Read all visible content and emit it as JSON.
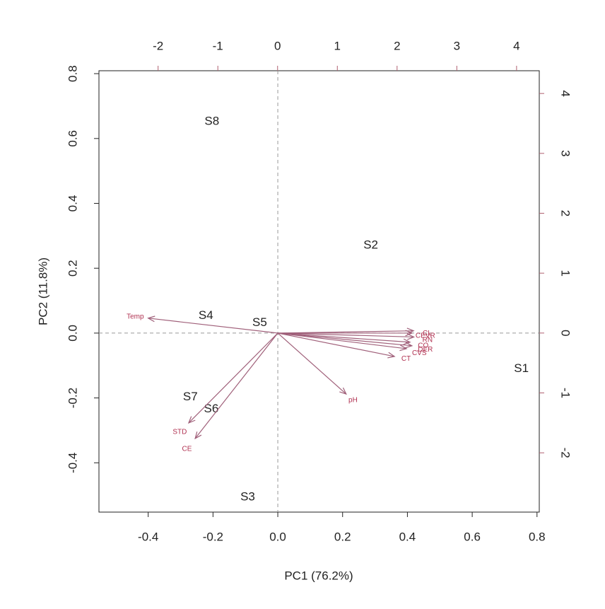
{
  "chart_data": {
    "type": "biplot",
    "xlabel": "PC1 (76.2%)",
    "ylabel": "PC2 (11.8%)",
    "xlim": [
      -0.552,
      0.807
    ],
    "ylim": [
      -0.552,
      0.809
    ],
    "xticks": [
      -0.4,
      -0.2,
      {
        "value": 0,
        "label": "0.0"
      },
      0.2,
      0.4,
      0.6,
      0.8
    ],
    "yticks": [
      -0.4,
      -0.2,
      {
        "value": 0,
        "label": "0.0"
      },
      0.2,
      0.4,
      0.6,
      0.8
    ],
    "x2lim": [
      -2.99,
      4.38
    ],
    "y2lim": [
      -2.99,
      4.38
    ],
    "x2ticks": [
      -2,
      -1,
      0,
      1,
      2,
      3,
      4
    ],
    "y2ticks": [
      -2,
      -1,
      0,
      1,
      2,
      3,
      4
    ],
    "samples": {
      "labels": [
        "S1",
        "S2",
        "S3",
        "S4",
        "S5",
        "S6",
        "S7",
        "S8"
      ],
      "x": [
        4.08,
        1.56,
        -0.5,
        -1.2,
        -0.3,
        -1.11,
        -1.46,
        -1.1
      ],
      "y": [
        -0.6,
        1.46,
        -2.74,
        0.29,
        0.17,
        -1.27,
        -1.07,
        3.53
      ],
      "color": "#111111"
    },
    "loadings": {
      "labels": [
        "Temp",
        "pH",
        "STD",
        "CE",
        "CT",
        "CEVR",
        "CL",
        "RN",
        "CO",
        "DER",
        "CVS"
      ],
      "x": [
        -0.4,
        0.211,
        -0.275,
        -0.255,
        0.36,
        0.414,
        0.419,
        0.42,
        0.408,
        0.414,
        0.397
      ],
      "y": [
        0.046,
        -0.188,
        -0.277,
        -0.325,
        -0.072,
        0.0,
        0.007,
        -0.012,
        -0.028,
        -0.039,
        -0.048
      ],
      "color": "#a0607a",
      "label_color": "#b03050"
    }
  }
}
